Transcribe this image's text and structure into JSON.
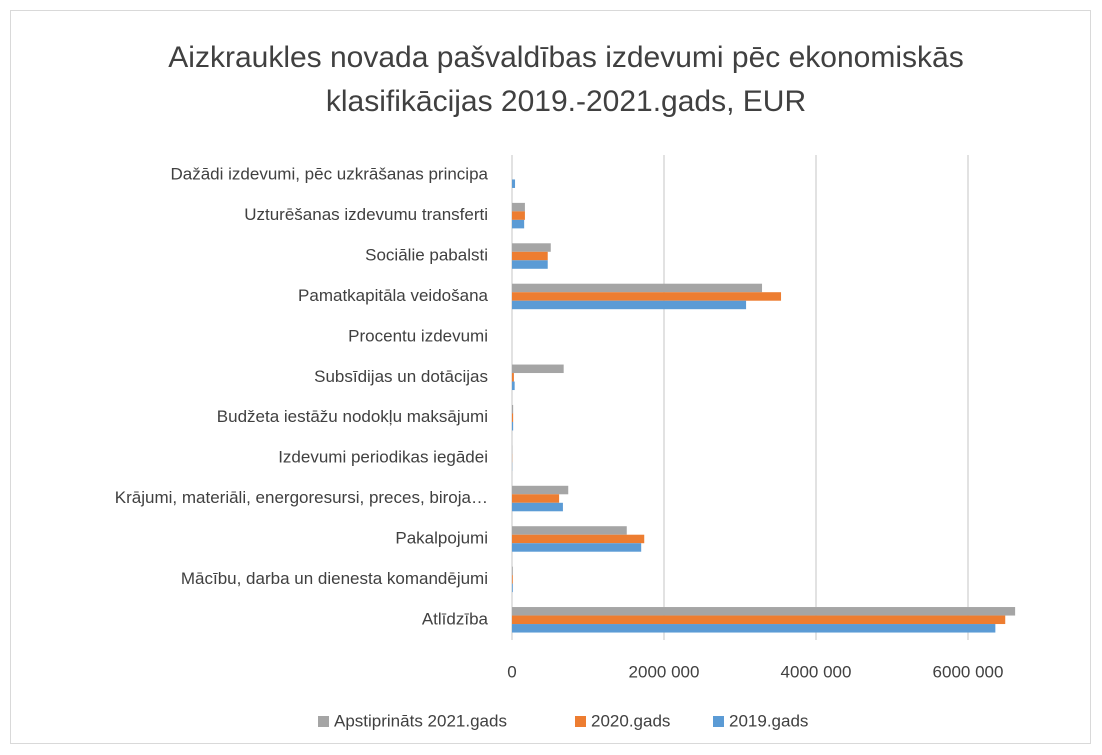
{
  "chart_data": {
    "type": "bar",
    "orientation": "horizontal",
    "title": "Aizkraukles novada pašvaldības izdevumi pēc ekonomiskās klasifikācijas 2019.-2021.gads, EUR",
    "categories": [
      "Atlīdzība",
      "Mācību, darba un dienesta komandējumi",
      "Pakalpojumi",
      "Krājumi, materiāli, energoresursi, preces, biroja…",
      "Izdevumi periodikas iegādei",
      "Budžeta iestāžu nodokļu maksājumi",
      "Subsīdijas un dotācijas",
      "Procentu izdevumi",
      "Pamatkapitāla veidošana",
      "Sociālie pabalsti",
      "Uzturēšanas izdevumu transferti",
      "Dažādi izdevumi,  pēc uzkrāšanas principa"
    ],
    "series": [
      {
        "name": "Apstiprināts 2021.gads",
        "color": "#a5a5a5",
        "values": [
          6620000,
          10000,
          1510000,
          740000,
          2000,
          15000,
          680000,
          0,
          3290000,
          510000,
          170000,
          0
        ]
      },
      {
        "name": "2020.gads",
        "color": "#ed7d31",
        "values": [
          6490000,
          10000,
          1740000,
          620000,
          2000,
          15000,
          25000,
          0,
          3540000,
          470000,
          170000,
          0
        ]
      },
      {
        "name": "2019.gads",
        "color": "#5b9bd5",
        "values": [
          6360000,
          10000,
          1700000,
          670000,
          2000,
          15000,
          35000,
          0,
          3080000,
          470000,
          160000,
          40000
        ]
      }
    ],
    "xlim": [
      0,
      7000000
    ],
    "xticks": [
      0,
      {
        "value": 2000000,
        "label": "2000 000"
      },
      {
        "value": 4000000,
        "label": "4000 000"
      },
      {
        "value": 6000000,
        "label": "6000 000"
      }
    ],
    "grid": true,
    "legend": "bottom"
  }
}
